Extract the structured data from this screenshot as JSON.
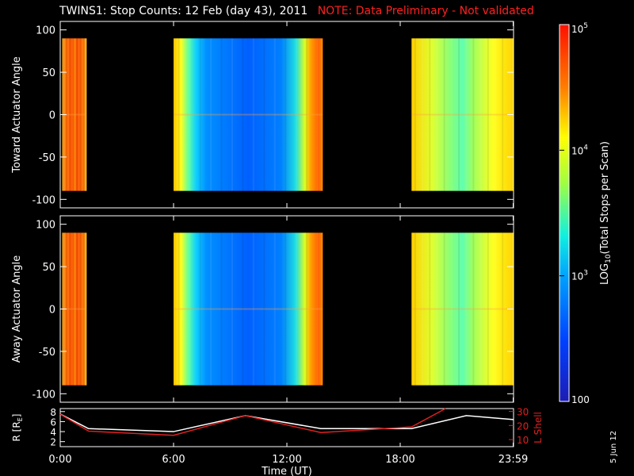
{
  "header": {
    "title": "TWINS1: Stop Counts: 12 Feb (day  43), 2011",
    "note": "NOTE: Data Preliminary - Not validated"
  },
  "datestamp": "5 Jun 12",
  "colors": {
    "background": "#000000",
    "axes": "#ffffff",
    "note": "#ff2020",
    "r_line": "#ffffff",
    "lshell_line": "#e02020"
  },
  "chart_data": [
    {
      "type": "heatmap",
      "title": "",
      "ylabel": "Toward Actuator Angle",
      "xlabel": "",
      "ylim": [
        -110,
        110
      ],
      "yticks": [
        100,
        50,
        0,
        -50,
        -100
      ],
      "xlim": [
        0,
        24
      ],
      "data_angle_range": [
        -90,
        90
      ],
      "segments": [
        {
          "start": 0.1,
          "end": 1.4,
          "profile": "edge"
        },
        {
          "start": 6.0,
          "end": 13.9,
          "profile": "dayside"
        },
        {
          "start": 18.6,
          "end": 24.0,
          "profile": "night"
        }
      ]
    },
    {
      "type": "heatmap",
      "title": "",
      "ylabel": "Away Actuator Angle",
      "xlabel": "",
      "ylim": [
        -110,
        110
      ],
      "yticks": [
        100,
        50,
        0,
        -50,
        -100
      ],
      "xlim": [
        0,
        24
      ],
      "data_angle_range": [
        -90,
        90
      ],
      "segments": [
        {
          "start": 0.1,
          "end": 1.4,
          "profile": "edge"
        },
        {
          "start": 6.0,
          "end": 13.9,
          "profile": "dayside"
        },
        {
          "start": 18.6,
          "end": 24.0,
          "profile": "night"
        }
      ]
    },
    {
      "type": "line",
      "xlabel": "Time (UT)",
      "xticks": [
        "0:00",
        "6:00",
        "12:00",
        "18:00",
        "23:59"
      ],
      "xtick_values": [
        0,
        6,
        12,
        18,
        23.98
      ],
      "y_left_label": "R [RE]",
      "y_left_ticks": [
        8,
        6,
        4,
        2
      ],
      "y_left_lim": [
        1,
        8.6
      ],
      "y_right_label": "L Shell",
      "y_right_ticks": [
        30,
        20,
        10
      ],
      "y_right_lim": [
        5,
        32
      ],
      "series": [
        {
          "axis": "left",
          "x": [
            0,
            1.5,
            6,
            9.8,
            13.8,
            18.6,
            21.5,
            24
          ],
          "y": [
            7.5,
            4.6,
            4.0,
            7.2,
            4.6,
            4.6,
            7.2,
            6.4
          ]
        },
        {
          "axis": "right",
          "x": [
            0,
            1.5,
            6,
            9.8,
            13.8,
            18.6,
            20.4
          ],
          "y": [
            28,
            16,
            13,
            27,
            15,
            19,
            32
          ]
        }
      ]
    }
  ],
  "colorbar": {
    "label_prefix": "LOG",
    "label_sub": "10",
    "label_suffix": "(Total Stops per Scan)",
    "ticks": [
      {
        "base": "10",
        "exp": "5",
        "value": 100000
      },
      {
        "base": "10",
        "exp": "4",
        "value": 10000
      },
      {
        "base": "10",
        "exp": "3",
        "value": 1000
      },
      {
        "base": "100",
        "exp": "",
        "value": 100
      }
    ],
    "range": [
      100,
      100000
    ]
  },
  "labels": {
    "r_prefix": "R [R",
    "r_sub": "E",
    "r_suffix": "]"
  }
}
